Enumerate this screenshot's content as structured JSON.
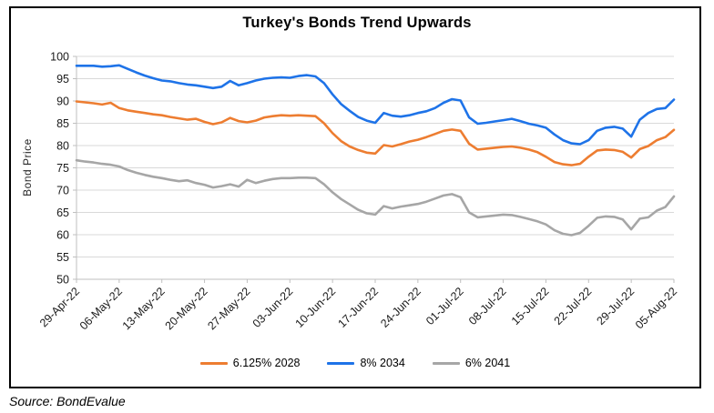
{
  "page": {
    "title": "Turkey's Bonds Trend Upwards",
    "source": "Source: BondEvalue"
  },
  "chart_data": {
    "type": "line",
    "title": "Turkey's Bonds Trend Upwards",
    "xlabel": "",
    "ylabel": "Bond Price",
    "ylim": [
      50,
      100
    ],
    "ytick_step": 5,
    "grid": "horizontal",
    "legend_position": "bottom",
    "x_tick_labels": [
      "29-Apr-22",
      "06-May-22",
      "13-May-22",
      "20-May-22",
      "27-May-22",
      "03-Jun-22",
      "10-Jun-22",
      "17-Jun-22",
      "24-Jun-22",
      "01-Jul-22",
      "08-Jul-22",
      "15-Jul-22",
      "22-Jul-22",
      "29-Jul-22",
      "05-Aug-22"
    ],
    "points_per_tick": 5,
    "series": [
      {
        "name": "6.125% 2028",
        "color": "#ED7D31",
        "values": [
          89.9,
          89.7,
          89.5,
          89.2,
          89.6,
          88.4,
          87.9,
          87.6,
          87.3,
          87.0,
          86.8,
          86.4,
          86.1,
          85.8,
          86.0,
          85.3,
          84.8,
          85.2,
          86.2,
          85.5,
          85.2,
          85.6,
          86.3,
          86.6,
          86.8,
          86.7,
          86.8,
          86.7,
          86.6,
          85.0,
          82.8,
          81.0,
          79.8,
          79.0,
          78.4,
          78.2,
          80.1,
          79.8,
          80.3,
          80.9,
          81.3,
          81.9,
          82.6,
          83.3,
          83.6,
          83.3,
          80.4,
          79.1,
          79.3,
          79.5,
          79.7,
          79.8,
          79.5,
          79.1,
          78.5,
          77.5,
          76.3,
          75.8,
          75.6,
          75.9,
          77.5,
          78.9,
          79.1,
          79.0,
          78.6,
          77.3,
          79.2,
          79.9,
          81.2,
          81.9,
          83.5
        ]
      },
      {
        "name": "8% 2034",
        "color": "#1E73E8",
        "values": [
          97.9,
          97.9,
          97.9,
          97.7,
          97.8,
          98.0,
          97.2,
          96.4,
          95.7,
          95.1,
          94.6,
          94.4,
          94.0,
          93.7,
          93.5,
          93.2,
          92.9,
          93.2,
          94.5,
          93.5,
          94.0,
          94.6,
          95.0,
          95.2,
          95.3,
          95.2,
          95.6,
          95.8,
          95.5,
          94.0,
          91.5,
          89.3,
          87.8,
          86.4,
          85.6,
          85.1,
          87.3,
          86.7,
          86.5,
          86.8,
          87.3,
          87.7,
          88.4,
          89.6,
          90.4,
          90.1,
          86.3,
          84.9,
          85.1,
          85.4,
          85.7,
          86.0,
          85.5,
          84.9,
          84.5,
          84.0,
          82.5,
          81.2,
          80.5,
          80.3,
          81.2,
          83.3,
          84.0,
          84.2,
          83.8,
          82.0,
          85.8,
          87.3,
          88.2,
          88.4,
          90.3
        ]
      },
      {
        "name": "6% 2041",
        "color": "#A6A6A6",
        "values": [
          76.7,
          76.4,
          76.2,
          75.9,
          75.7,
          75.3,
          74.5,
          73.9,
          73.4,
          73.0,
          72.7,
          72.3,
          72.0,
          72.2,
          71.6,
          71.2,
          70.6,
          70.9,
          71.3,
          70.8,
          72.3,
          71.6,
          72.1,
          72.5,
          72.7,
          72.7,
          72.8,
          72.8,
          72.7,
          71.3,
          69.5,
          68.0,
          66.8,
          65.6,
          64.8,
          64.5,
          66.4,
          65.9,
          66.3,
          66.6,
          66.9,
          67.4,
          68.1,
          68.8,
          69.1,
          68.4,
          65.0,
          63.9,
          64.1,
          64.3,
          64.5,
          64.4,
          64.0,
          63.5,
          63.0,
          62.3,
          61.0,
          60.2,
          59.9,
          60.4,
          62.0,
          63.8,
          64.1,
          64.0,
          63.4,
          61.2,
          63.6,
          63.9,
          65.4,
          66.2,
          68.6
        ]
      }
    ],
    "source": "Source: BondEvalue"
  },
  "colors": {
    "gridline": "#D9D9D9",
    "axis": "#BFBFBF",
    "tick_text": "#1a1a1a",
    "border": "#000000"
  }
}
